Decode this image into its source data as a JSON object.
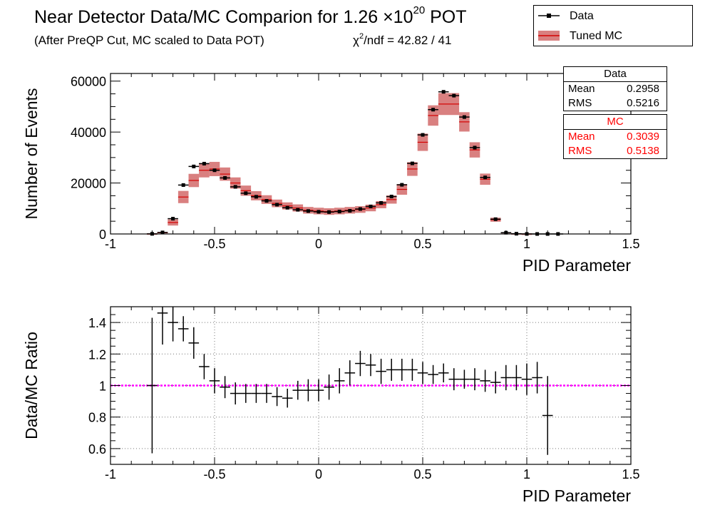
{
  "header": {
    "title_main": "Near Detector Data/MC Comparion for 1.26 ×10",
    "title_exp": "20",
    "title_tail": " POT",
    "subtitle": "(After PreQP Cut, MC scaled to Data POT)",
    "chi_prefix": "χ",
    "chi_sup": "2",
    "chi_rest": "/ndf = 42.82 / 41"
  },
  "legend": {
    "data_label": "Data",
    "mc_label": "Tuned MC"
  },
  "stats_data": {
    "title": "Data",
    "mean_label": "Mean",
    "mean": "0.2958",
    "rms_label": "RMS",
    "rms": "0.5216"
  },
  "stats_mc": {
    "title": "MC",
    "mean_label": "Mean",
    "mean": "0.3039",
    "rms_label": "RMS",
    "rms": "0.5138"
  },
  "colors": {
    "data": "#000000",
    "mc_band": "#cc5555",
    "mc_line": "#d40000",
    "reference": "#ff00ff",
    "grid": "#777777",
    "stats_mc_text": "#ff0000"
  },
  "chart_data": [
    {
      "type": "line",
      "title": "Near Detector Data/MC Comparion for 1.26 ×10^20 POT",
      "xlabel": "PID Parameter",
      "ylabel": "Number of Events",
      "xlim": [
        -1,
        1.5
      ],
      "ylim": [
        0,
        63000
      ],
      "xticks": [
        "-1",
        "-0.5",
        "0",
        "0.5",
        "1",
        "1.5"
      ],
      "yticks": [
        "0",
        "20000",
        "40000",
        "60000"
      ],
      "grid": false,
      "legend": "top-right",
      "series": [
        {
          "name": "Data",
          "style": "points",
          "x": [
            -0.8,
            -0.75,
            -0.7,
            -0.65,
            -0.6,
            -0.55,
            -0.5,
            -0.45,
            -0.4,
            -0.35,
            -0.3,
            -0.25,
            -0.2,
            -0.15,
            -0.1,
            -0.05,
            0,
            0.05,
            0.1,
            0.15,
            0.2,
            0.25,
            0.3,
            0.35,
            0.4,
            0.45,
            0.5,
            0.55,
            0.6,
            0.65,
            0.7,
            0.75,
            0.8,
            0.85,
            0.9,
            0.95,
            1.0,
            1.05,
            1.1,
            1.15
          ],
          "y": [
            50,
            600,
            6000,
            19200,
            26500,
            27600,
            25000,
            22000,
            18500,
            16000,
            14600,
            13000,
            11500,
            10300,
            9500,
            9000,
            8700,
            8600,
            8800,
            9100,
            9800,
            10800,
            12200,
            14700,
            19300,
            27700,
            38900,
            48800,
            55800,
            54300,
            45900,
            33900,
            22200,
            5800,
            500,
            100,
            20,
            0,
            0,
            0
          ]
        },
        {
          "name": "Tuned MC",
          "style": "band",
          "x": [
            -0.8,
            -0.75,
            -0.7,
            -0.65,
            -0.6,
            -0.55,
            -0.5,
            -0.45,
            -0.4,
            -0.35,
            -0.3,
            -0.25,
            -0.2,
            -0.15,
            -0.1,
            -0.05,
            0,
            0.05,
            0.1,
            0.15,
            0.2,
            0.25,
            0.3,
            0.35,
            0.4,
            0.45,
            0.5,
            0.55,
            0.6,
            0.65,
            0.7,
            0.75,
            0.8,
            0.85,
            0.9,
            0.95,
            1.0,
            1.05,
            1.1,
            1.15
          ],
          "y": [
            50,
            500,
            4500,
            14500,
            21000,
            25000,
            25500,
            23500,
            20000,
            17000,
            15000,
            13500,
            12000,
            11000,
            10200,
            9300,
            9000,
            8800,
            9000,
            9300,
            9600,
            10200,
            11500,
            13500,
            17500,
            25500,
            36000,
            46500,
            51000,
            51000,
            44000,
            33000,
            21500,
            5600,
            500,
            100,
            20,
            0,
            0,
            0
          ],
          "band_halfwidth": [
            30,
            200,
            1200,
            2400,
            2600,
            2800,
            2800,
            2600,
            2200,
            2000,
            1800,
            1700,
            1500,
            1400,
            1400,
            1300,
            1300,
            1300,
            1300,
            1300,
            1300,
            1300,
            1400,
            1600,
            2100,
            2700,
            3400,
            4000,
            4300,
            4300,
            3800,
            3000,
            2200,
            800,
            150,
            50,
            10,
            0,
            0,
            0
          ]
        }
      ]
    },
    {
      "type": "scatter",
      "xlabel": "PID Parameter",
      "ylabel": "Data/MC Ratio",
      "xlim": [
        -1,
        1.5
      ],
      "ylim": [
        0.5,
        1.5
      ],
      "xticks": [
        "-1",
        "-0.5",
        "0",
        "0.5",
        "1",
        "1.5"
      ],
      "yticks": [
        "0.6",
        "0.8",
        "1",
        "1.2",
        "1.4"
      ],
      "grid": true,
      "reference_line": 1,
      "x": [
        -0.8,
        -0.75,
        -0.7,
        -0.65,
        -0.6,
        -0.55,
        -0.5,
        -0.45,
        -0.4,
        -0.35,
        -0.3,
        -0.25,
        -0.2,
        -0.15,
        -0.1,
        -0.05,
        0,
        0.05,
        0.1,
        0.15,
        0.2,
        0.25,
        0.3,
        0.35,
        0.4,
        0.45,
        0.5,
        0.55,
        0.6,
        0.65,
        0.7,
        0.75,
        0.8,
        0.85,
        0.9,
        0.95,
        1.0,
        1.05,
        1.1
      ],
      "y": [
        1.0,
        1.46,
        1.4,
        1.36,
        1.27,
        1.12,
        1.03,
        0.99,
        0.95,
        0.95,
        0.95,
        0.95,
        0.93,
        0.92,
        0.97,
        0.97,
        0.97,
        0.99,
        1.03,
        1.08,
        1.14,
        1.13,
        1.09,
        1.1,
        1.1,
        1.1,
        1.08,
        1.07,
        1.08,
        1.04,
        1.04,
        1.04,
        1.03,
        1.02,
        1.05,
        1.05,
        1.04,
        1.05,
        0.81
      ],
      "yerr": [
        0.43,
        0.2,
        0.12,
        0.08,
        0.1,
        0.08,
        0.08,
        0.07,
        0.07,
        0.06,
        0.06,
        0.06,
        0.06,
        0.06,
        0.06,
        0.07,
        0.07,
        0.08,
        0.08,
        0.08,
        0.08,
        0.07,
        0.08,
        0.07,
        0.07,
        0.07,
        0.07,
        0.06,
        0.06,
        0.07,
        0.06,
        0.07,
        0.07,
        0.07,
        0.08,
        0.08,
        0.1,
        0.1,
        0.25
      ]
    }
  ]
}
